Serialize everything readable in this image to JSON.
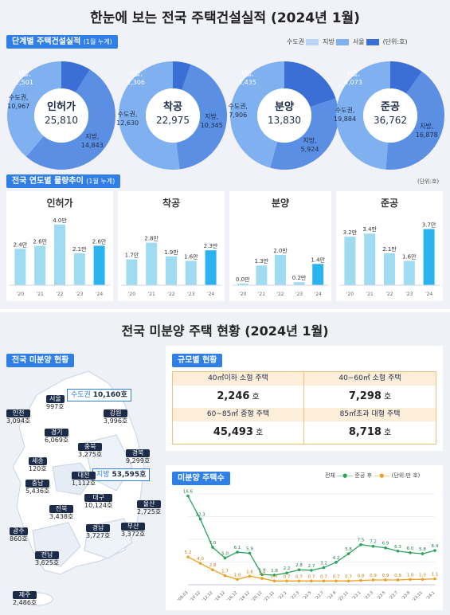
{
  "header": {
    "title": "한눈에 보는 전국 주택건설실적 (2024년 1월)"
  },
  "section_donut": {
    "tag": "단계별 주택건설실적",
    "tag_sub": "(1월 누계)",
    "legend": [
      "수도권",
      "지방",
      "서울",
      "(단위:호)"
    ],
    "colors": {
      "capital": "#7fb0ef",
      "provincial": "#5b8fe3",
      "seoul": "#3b6fd6"
    }
  },
  "section_bar": {
    "tag": "전국 연도별 물량추이",
    "tag_sub": "(1월 누계)",
    "unit": "(단위:호)"
  },
  "section2": {
    "title": "전국 미분양 주택 현황 (2024년 1월)",
    "map_tag": "전국 미분양 현황",
    "capital_box": {
      "label": "수도권",
      "value": "10,160호"
    },
    "province_box": {
      "label": "지방",
      "value": "53,595호"
    },
    "regions": [
      {
        "name": "서울",
        "value": "997호"
      },
      {
        "name": "인천",
        "value": "3,094호"
      },
      {
        "name": "경기",
        "value": "6,069호"
      },
      {
        "name": "강원",
        "value": "3,996호"
      },
      {
        "name": "충북",
        "value": "3,275호"
      },
      {
        "name": "세종",
        "value": "120호"
      },
      {
        "name": "경북",
        "value": "9,299호"
      },
      {
        "name": "충남",
        "value": "5,436호"
      },
      {
        "name": "대전",
        "value": "1,112호"
      },
      {
        "name": "대구",
        "value": "10,124호"
      },
      {
        "name": "전북",
        "value": "3,438호"
      },
      {
        "name": "울산",
        "value": "2,725호"
      },
      {
        "name": "광주",
        "value": "860호"
      },
      {
        "name": "경남",
        "value": "3,727호"
      },
      {
        "name": "부산",
        "value": "3,372호"
      },
      {
        "name": "전남",
        "value": "3,625호"
      },
      {
        "name": "제주",
        "value": "2,486호"
      }
    ],
    "scale": {
      "tag": "규모별 현황",
      "cells": [
        {
          "label": "40㎡이하 소형 주택",
          "value": "2,246",
          "unit": "호"
        },
        {
          "label": "40~60㎡ 소형 주택",
          "value": "7,298",
          "unit": "호"
        },
        {
          "label": "60~85㎡ 중형 주택",
          "value": "45,493",
          "unit": "호"
        },
        {
          "label": "85㎡초과 대형 주택",
          "value": "8,718",
          "unit": "호"
        }
      ]
    },
    "trend": {
      "tag": "미분양 주택수",
      "legend_total": "전체",
      "legend_after": "준공 후",
      "unit": "(단위:만 호)"
    }
  },
  "chart_data": [
    {
      "type": "pie",
      "name": "인허가",
      "labels": [
        "서울",
        "지방",
        "수도권"
      ],
      "values": [
        2501,
        14843,
        10967
      ],
      "total": "25,810"
    },
    {
      "type": "pie",
      "name": "착공",
      "labels": [
        "서울",
        "지방",
        "수도권"
      ],
      "values": [
        1306,
        10345,
        12630
      ],
      "total": "22,975"
    },
    {
      "type": "pie",
      "name": "분양",
      "labels": [
        "서울",
        "지방",
        "수도권"
      ],
      "values": [
        3435,
        5924,
        7906
      ],
      "total": "13,830"
    },
    {
      "type": "pie",
      "name": "준공",
      "labels": [
        "서울",
        "지방",
        "수도권"
      ],
      "values": [
        4073,
        16878,
        19884
      ],
      "total": "36,762"
    },
    {
      "type": "bar",
      "title": "인허가",
      "categories": [
        "'20",
        "'21",
        "'22",
        "'23",
        "'24"
      ],
      "values": [
        2.4,
        2.6,
        4.0,
        2.1,
        2.6
      ],
      "labels": [
        "2.4만",
        "2.6만",
        "4.0만",
        "2.1만",
        "2.6만"
      ],
      "ylim": [
        0,
        4.2
      ]
    },
    {
      "type": "bar",
      "title": "착공",
      "categories": [
        "'20",
        "'21",
        "'22",
        "'23",
        "'24"
      ],
      "values": [
        1.7,
        2.8,
        1.9,
        1.6,
        2.3
      ],
      "labels": [
        "1.7만",
        "2.8만",
        "1.9만",
        "1.6만",
        "2.3만"
      ],
      "ylim": [
        0,
        4.2
      ]
    },
    {
      "type": "bar",
      "title": "분양",
      "categories": [
        "'20",
        "'21",
        "'22",
        "'23",
        "'24"
      ],
      "values": [
        0.0,
        1.3,
        2.0,
        0.2,
        1.4
      ],
      "labels": [
        "0.0만",
        "1.3만",
        "2.0만",
        "0.2만",
        "1.4만"
      ],
      "ylim": [
        0,
        4.2
      ]
    },
    {
      "type": "bar",
      "title": "준공",
      "categories": [
        "'20",
        "'21",
        "'22",
        "'23",
        "'24"
      ],
      "values": [
        3.2,
        3.4,
        2.1,
        1.6,
        3.7
      ],
      "labels": [
        "3.2만",
        "3.4만",
        "2.1만",
        "1.6만",
        "3.7만"
      ],
      "ylim": [
        0,
        4.2
      ]
    },
    {
      "type": "line",
      "title": "미분양 주택수",
      "x": [
        "'09.03",
        "'10.12",
        "'12.12",
        "'14.12",
        "'16.12",
        "'18.12",
        "'20.12",
        "'21.11",
        "'22.1",
        "'22.3",
        "'22.5",
        "'22.7",
        "'22.9",
        "'22.11",
        "'23.1",
        "'23.3",
        "'23.5",
        "'23.7",
        "'23.9",
        "'23.11",
        "'24.1"
      ],
      "ylim": [
        0,
        17
      ],
      "series": [
        {
          "name": "전체",
          "values": [
            16.6,
            12.3,
            7.0,
            5.0,
            6.1,
            5.9,
            1.9,
            1.8,
            2.2,
            2.8,
            2.7,
            3.2,
            4.2,
            5.8,
            7.5,
            7.2,
            6.9,
            6.3,
            6.0,
            5.8,
            6.4
          ]
        },
        {
          "name": "준공 후",
          "values": [
            5.2,
            4.0,
            2.8,
            1.7,
            1.0,
            1.6,
            1.2,
            0.7,
            0.7,
            0.7,
            0.7,
            0.7,
            0.7,
            0.7,
            0.8,
            0.9,
            0.9,
            0.9,
            1.0,
            1.0,
            1.1
          ]
        }
      ]
    }
  ]
}
